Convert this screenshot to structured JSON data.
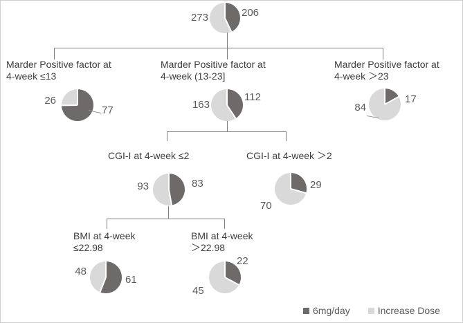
{
  "colors": {
    "dark": "#6f6a6a",
    "light": "#d9d9d9",
    "line": "#7f7f7f",
    "label_text": "#3d3d3d",
    "number_text": "#595959"
  },
  "legend": {
    "items": [
      {
        "label": "6mg/day",
        "series": "dark"
      },
      {
        "label": "Increase Dose",
        "series": "light"
      }
    ]
  },
  "chart_data": {
    "type": "pie",
    "description": "Decision tree; each node shows a pie of patients on 6mg/day (dark) vs Increase Dose (light), dark slice starts at 12 o'clock clockwise",
    "series_names": [
      "6mg/day",
      "Increase Dose"
    ],
    "nodes": {
      "root": {
        "six_mg": 206,
        "increase": 273
      },
      "marder_le13": {
        "label_line1": "Marder Positive factor at",
        "label_line2": "4-week ≤13",
        "six_mg": 77,
        "increase": 26
      },
      "marder_13_23": {
        "label_line1": "Marder Positive factor at",
        "label_line2": "4-week (13-23]",
        "six_mg": 112,
        "increase": 163
      },
      "marder_gt23": {
        "label_line1": "Marder Positive factor at",
        "label_line2": "4-week ＞23",
        "six_mg": 17,
        "increase": 84
      },
      "cgi_le2": {
        "label": "CGI-I at 4-week ≤2",
        "six_mg": 83,
        "increase": 93
      },
      "cgi_gt2": {
        "label": "CGI-I at 4-week ＞2",
        "six_mg": 29,
        "increase": 70
      },
      "bmi_le2298": {
        "label_line1": "BMI at 4-week",
        "label_line2": "≤22.98",
        "six_mg": 61,
        "increase": 48
      },
      "bmi_gt2298": {
        "label_line1": "BMI at 4-week",
        "label_line2": "＞22.98",
        "six_mg": 22,
        "increase": 45
      }
    }
  }
}
